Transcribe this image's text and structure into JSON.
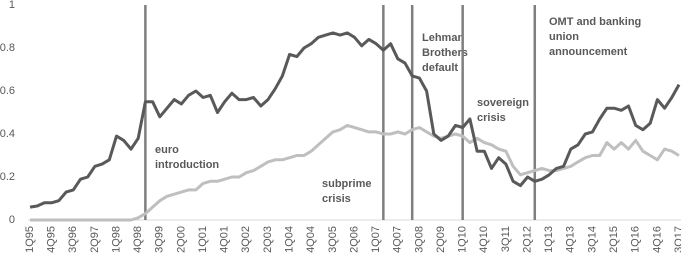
{
  "chart_data": {
    "type": "line",
    "categories": [
      "1Q95",
      null,
      null,
      "4Q95",
      null,
      null,
      "3Q96",
      null,
      null,
      "2Q97",
      null,
      null,
      "1Q98",
      null,
      null,
      "4Q98",
      null,
      null,
      "3Q99",
      null,
      null,
      "2Q00",
      null,
      null,
      "1Q01",
      null,
      null,
      "4Q01",
      null,
      null,
      "3Q02",
      null,
      null,
      "2Q03",
      null,
      null,
      "1Q04",
      null,
      null,
      "4Q04",
      null,
      null,
      "3Q05",
      null,
      null,
      "2Q06",
      null,
      null,
      "1Q07",
      null,
      null,
      "4Q07",
      null,
      null,
      "3Q08",
      null,
      null,
      "2Q09",
      null,
      null,
      "1Q10",
      null,
      null,
      "4Q10",
      null,
      null,
      "3Q11",
      null,
      null,
      "2Q12",
      null,
      null,
      "1Q13",
      null,
      null,
      "4Q13",
      null,
      null,
      "3Q14",
      null,
      null,
      "2Q15",
      null,
      null,
      "1Q16",
      null,
      null,
      "4Q16",
      null,
      null,
      "3Q17"
    ],
    "series": [
      {
        "color": "#595959",
        "values": [
          0.06,
          0.065,
          0.08,
          0.08,
          0.09,
          0.13,
          0.14,
          0.19,
          0.2,
          0.25,
          0.26,
          0.28,
          0.39,
          0.37,
          0.33,
          0.38,
          0.55,
          0.55,
          0.48,
          0.52,
          0.56,
          0.54,
          0.58,
          0.6,
          0.57,
          0.58,
          0.5,
          0.55,
          0.59,
          0.56,
          0.56,
          0.57,
          0.53,
          0.56,
          0.61,
          0.67,
          0.77,
          0.76,
          0.8,
          0.82,
          0.85,
          0.86,
          0.87,
          0.86,
          0.87,
          0.85,
          0.81,
          0.84,
          0.82,
          0.79,
          0.82,
          0.75,
          0.73,
          0.67,
          0.66,
          0.6,
          0.4,
          0.37,
          0.39,
          0.44,
          0.43,
          0.47,
          0.32,
          0.32,
          0.24,
          0.29,
          0.26,
          0.18,
          0.16,
          0.2,
          0.18,
          0.19,
          0.21,
          0.24,
          0.25,
          0.33,
          0.35,
          0.4,
          0.41,
          0.47,
          0.52,
          0.52,
          0.51,
          0.53,
          0.44,
          0.42,
          0.45,
          0.56,
          0.52,
          0.57,
          0.63
        ]
      },
      {
        "color": "#bfbfbf",
        "values": [
          0,
          0,
          0,
          0,
          0,
          0,
          0,
          0,
          0,
          0,
          0,
          0,
          0,
          0,
          0,
          0.01,
          0.03,
          0.06,
          0.09,
          0.11,
          0.12,
          0.13,
          0.14,
          0.14,
          0.17,
          0.18,
          0.18,
          0.19,
          0.2,
          0.2,
          0.22,
          0.23,
          0.25,
          0.27,
          0.28,
          0.28,
          0.29,
          0.3,
          0.3,
          0.32,
          0.35,
          0.38,
          0.41,
          0.42,
          0.44,
          0.43,
          0.42,
          0.41,
          0.41,
          0.4,
          0.4,
          0.41,
          0.4,
          0.42,
          0.43,
          0.41,
          0.39,
          0.38,
          0.39,
          0.4,
          0.39,
          0.36,
          0.38,
          0.36,
          0.35,
          0.33,
          0.32,
          0.25,
          0.21,
          0.22,
          0.23,
          0.24,
          0.23,
          0.23,
          0.24,
          0.25,
          0.27,
          0.29,
          0.3,
          0.3,
          0.36,
          0.33,
          0.36,
          0.33,
          0.37,
          0.32,
          0.3,
          0.28,
          0.33,
          0.32,
          0.3
        ]
      }
    ],
    "ylim": [
      0,
      1
    ],
    "yticks": [
      0,
      0.2,
      0.4,
      0.6,
      0.8,
      1
    ],
    "event_line_color": "#7f7f7f",
    "annotations": [
      {
        "x": 16,
        "text": [
          "euro",
          "introduction"
        ]
      },
      {
        "x": 49,
        "text": [
          "subprime",
          "crisis"
        ]
      },
      {
        "x": 53,
        "text": [
          "Lehman",
          "Brothers",
          "default"
        ]
      },
      {
        "x": 60,
        "text": [
          "sovereign",
          "crisis"
        ]
      },
      {
        "x": 70,
        "text": [
          "OMT and banking",
          "union",
          "announcement"
        ]
      }
    ]
  }
}
